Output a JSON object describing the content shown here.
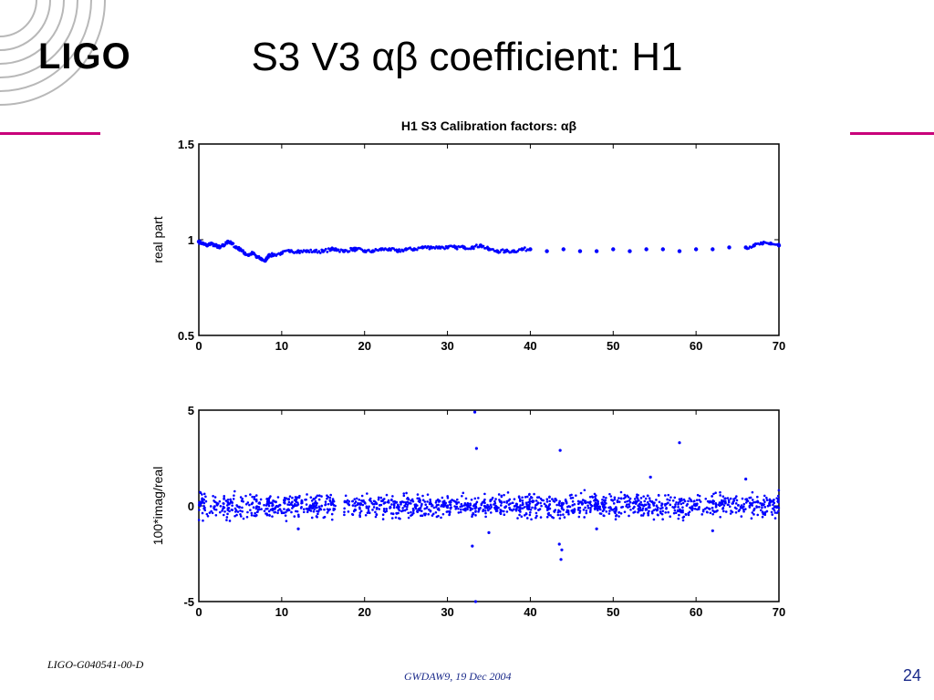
{
  "slide": {
    "logo": "LIGO",
    "title": "S3 V3 αβ coefficient: H1",
    "footer_left": "LIGO-G040541-00-D",
    "footer_center": "GWDAW9, 19 Dec 2004",
    "page_number": "24",
    "accent_color": "#c8007a",
    "footer_color": "#1a2a8a"
  },
  "chart_data": {
    "figure_title": "H1 S3 Calibration factors: αβ",
    "marker_color": "#0000ff",
    "panels": [
      {
        "type": "scatter",
        "ylabel": "real part",
        "xlim": [
          0,
          70
        ],
        "ylim": [
          0.5,
          1.5
        ],
        "xticks": [
          "0",
          "10",
          "20",
          "30",
          "40",
          "50",
          "60",
          "70"
        ],
        "yticks": [
          "0.5",
          "1",
          "1.5"
        ],
        "ytick_values": [
          0.5,
          1,
          1.5
        ],
        "series": [
          {
            "x": [
              0,
              0.5,
              1,
              1.5,
              2,
              2.5,
              3,
              3.5,
              4,
              4.5,
              5,
              5.5,
              6,
              6.5,
              7,
              7.5,
              8,
              8.5,
              9,
              10,
              11,
              12,
              13,
              14,
              15,
              16,
              16.5,
              17.5,
              18.5,
              19,
              20,
              21,
              22,
              23,
              24,
              25,
              26,
              27,
              28,
              29,
              30,
              31,
              32,
              33,
              34,
              35,
              36,
              37,
              38,
              39,
              40,
              42,
              44,
              46,
              48,
              50,
              52,
              54,
              56,
              58,
              60,
              62,
              64,
              66,
              67,
              68,
              69,
              70
            ],
            "y": [
              0.99,
              0.98,
              0.97,
              0.98,
              0.97,
              0.96,
              0.97,
              0.99,
              0.98,
              0.96,
              0.95,
              0.93,
              0.92,
              0.93,
              0.91,
              0.9,
              0.89,
              0.92,
              0.92,
              0.93,
              0.94,
              0.94,
              0.94,
              0.94,
              0.94,
              0.95,
              0.95,
              0.94,
              0.95,
              0.95,
              0.94,
              0.94,
              0.95,
              0.95,
              0.94,
              0.95,
              0.95,
              0.96,
              0.96,
              0.96,
              0.96,
              0.96,
              0.96,
              0.96,
              0.97,
              0.95,
              0.94,
              0.94,
              0.94,
              0.95,
              0.95,
              0.94,
              0.95,
              0.94,
              0.94,
              0.95,
              0.94,
              0.95,
              0.95,
              0.94,
              0.95,
              0.95,
              0.96,
              0.96,
              0.97,
              0.98,
              0.98,
              0.97
            ]
          }
        ]
      },
      {
        "type": "scatter",
        "ylabel": "100*imag/real",
        "xlim": [
          0,
          70
        ],
        "ylim": [
          -5,
          5
        ],
        "xticks": [
          "0",
          "10",
          "20",
          "30",
          "40",
          "50",
          "60",
          "70"
        ],
        "yticks": [
          "-5",
          "0",
          "5"
        ],
        "ytick_values": [
          -5,
          0,
          5
        ],
        "band": {
          "x_ranges": [
            [
              0,
              16.5
            ],
            [
              17.5,
              18.2
            ],
            [
              18.5,
              70
            ]
          ],
          "center": 0,
          "half_width": 0.9
        },
        "outliers": {
          "x": [
            33.3,
            33.5,
            33.4,
            43.6,
            43.7,
            43.8,
            58,
            54.5,
            66,
            33.0,
            43.5,
            35,
            12,
            62,
            48
          ],
          "y": [
            4.9,
            3,
            -5,
            2.9,
            -2.8,
            -2.3,
            3.3,
            1.5,
            1.4,
            -2.1,
            -2.0,
            -1.4,
            -1.2,
            -1.3,
            -1.2
          ]
        }
      }
    ]
  }
}
